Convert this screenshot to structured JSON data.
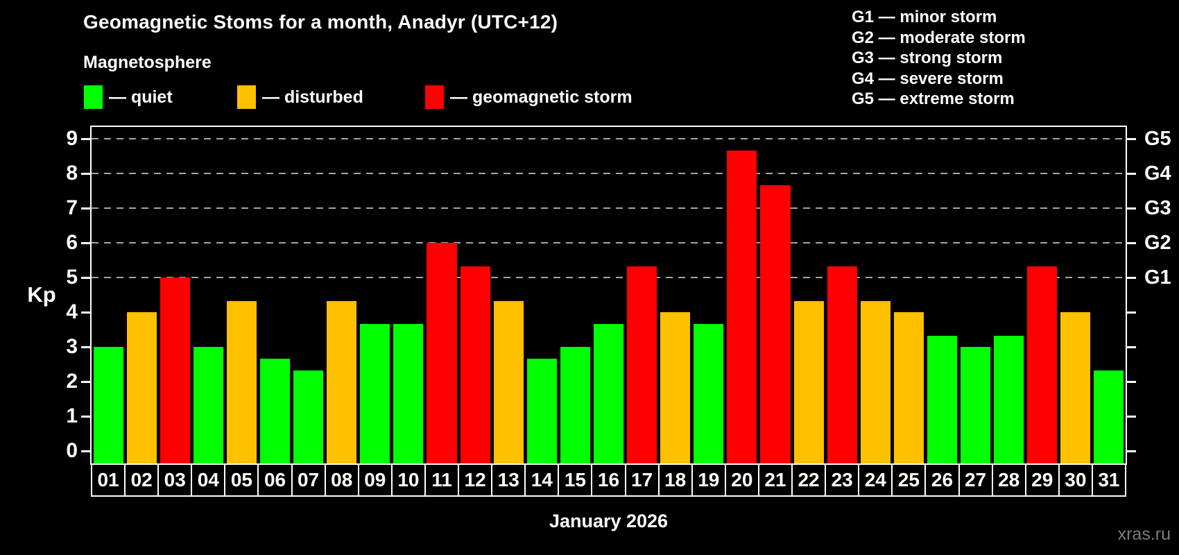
{
  "title": "Geomagnetic Stoms for a month, Anadyr (UTC+12)",
  "subtitle": "Magnetosphere",
  "legend": {
    "items": [
      {
        "type": "quiet",
        "label": "— quiet",
        "color": "#00ff00"
      },
      {
        "type": "disturbed",
        "label": "— disturbed",
        "color": "#ffc000"
      },
      {
        "type": "storm",
        "label": "— geomagnetic storm",
        "color": "#ff0000"
      }
    ]
  },
  "g_legend": {
    "lines": [
      {
        "code": "G1",
        "desc": "minor storm",
        "label": "G1 — minor storm"
      },
      {
        "code": "G2",
        "desc": "moderate storm",
        "label": "G2 — moderate storm"
      },
      {
        "code": "G3",
        "desc": "strong storm",
        "label": "G3 — strong storm"
      },
      {
        "code": "G4",
        "desc": "severe storm",
        "label": "G4 — severe storm"
      },
      {
        "code": "G5",
        "desc": "extreme storm",
        "label": "G5 — extreme storm"
      }
    ]
  },
  "chart_data": {
    "type": "bar",
    "title": "Geomagnetic Stoms for a month, Anadyr (UTC+12)",
    "xlabel": "January 2026",
    "ylabel": "Kp",
    "ylim": [
      0,
      9.4
    ],
    "y_ticks": [
      0,
      1,
      2,
      3,
      4,
      5,
      6,
      7,
      8,
      9
    ],
    "gridlines_at": [
      5,
      6,
      7,
      8,
      9
    ],
    "grid": "horizontal dashed at storm levels",
    "legend_position": "top-left",
    "right_axis": [
      {
        "kp": 5,
        "label": "G1"
      },
      {
        "kp": 6,
        "label": "G2"
      },
      {
        "kp": 7,
        "label": "G3"
      },
      {
        "kp": 8,
        "label": "G4"
      },
      {
        "kp": 9,
        "label": "G5"
      }
    ],
    "categories": [
      "01",
      "02",
      "03",
      "04",
      "05",
      "06",
      "07",
      "08",
      "09",
      "10",
      "11",
      "12",
      "13",
      "14",
      "15",
      "16",
      "17",
      "18",
      "19",
      "20",
      "21",
      "22",
      "23",
      "24",
      "25",
      "26",
      "27",
      "28",
      "29",
      "30",
      "31"
    ],
    "values": [
      3.0,
      4.0,
      5.0,
      3.0,
      4.33,
      2.67,
      2.33,
      4.33,
      3.67,
      3.67,
      6.0,
      5.33,
      4.33,
      2.67,
      3.0,
      3.67,
      5.33,
      4.0,
      3.67,
      8.67,
      7.67,
      4.33,
      5.33,
      4.33,
      4.0,
      3.33,
      3.0,
      3.33,
      5.33,
      4.0,
      2.33
    ],
    "statuses": [
      "quiet",
      "disturbed",
      "storm",
      "quiet",
      "disturbed",
      "quiet",
      "quiet",
      "disturbed",
      "quiet",
      "quiet",
      "storm",
      "storm",
      "disturbed",
      "quiet",
      "quiet",
      "quiet",
      "storm",
      "disturbed",
      "quiet",
      "storm",
      "storm",
      "disturbed",
      "storm",
      "disturbed",
      "disturbed",
      "quiet",
      "quiet",
      "quiet",
      "storm",
      "disturbed",
      "quiet"
    ],
    "status_colors": {
      "quiet": "#00ff00",
      "disturbed": "#ffc000",
      "storm": "#ff0000"
    }
  },
  "footer": {
    "xaxis_title": "January 2026",
    "watermark": "xras.ru"
  }
}
